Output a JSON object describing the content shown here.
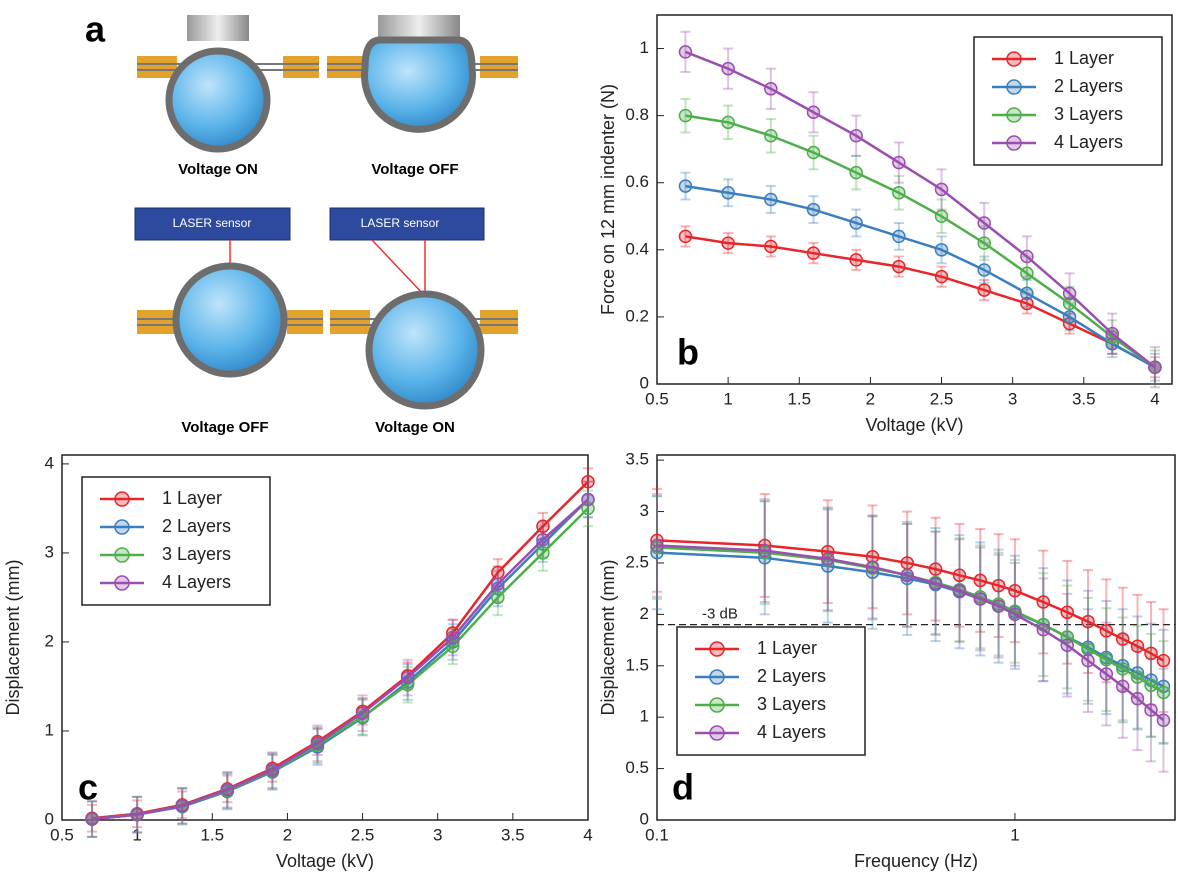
{
  "diagram": {
    "panel_label": "a",
    "top_captions": [
      "Voltage ON",
      "Voltage OFF"
    ],
    "sensor_labels": [
      "LASER sensor",
      "LASER sensor"
    ],
    "bottom_captions": [
      "Voltage OFF",
      "Voltage ON"
    ]
  },
  "chart_data": [
    {
      "type": "line",
      "panel_label": "b",
      "x_label": "Voltage (kV)",
      "y_label": "Force on 12 mm indenter (N)",
      "x": [
        0.7,
        1.0,
        1.3,
        1.6,
        1.9,
        2.2,
        2.5,
        2.8,
        3.1,
        3.4,
        3.7,
        4.0
      ],
      "series": [
        {
          "name": "1 Layer",
          "color": "#e8262a",
          "error": 0.03,
          "values": [
            0.44,
            0.42,
            0.41,
            0.39,
            0.37,
            0.35,
            0.32,
            0.28,
            0.24,
            0.18,
            0.12,
            0.05
          ]
        },
        {
          "name": "2 Layers",
          "color": "#3a7fc1",
          "error": 0.04,
          "values": [
            0.59,
            0.57,
            0.55,
            0.52,
            0.48,
            0.44,
            0.4,
            0.34,
            0.27,
            0.2,
            0.12,
            0.05
          ]
        },
        {
          "name": "3 Layers",
          "color": "#4daf4a",
          "error": 0.05,
          "values": [
            0.8,
            0.78,
            0.74,
            0.69,
            0.63,
            0.57,
            0.5,
            0.42,
            0.33,
            0.24,
            0.14,
            0.05
          ]
        },
        {
          "name": "4 Layers",
          "color": "#9a4fb0",
          "error": 0.06,
          "values": [
            0.99,
            0.94,
            0.88,
            0.81,
            0.74,
            0.66,
            0.58,
            0.48,
            0.38,
            0.27,
            0.15,
            0.05
          ]
        }
      ],
      "xlim": [
        0.5,
        4.12
      ],
      "ylim": [
        0,
        1.1
      ],
      "xticks": [
        0.5,
        1,
        1.5,
        2,
        2.5,
        3,
        3.5,
        4
      ],
      "yticks": [
        0,
        0.2,
        0.4,
        0.6,
        0.8,
        1
      ],
      "legend": "upper right"
    },
    {
      "type": "line",
      "panel_label": "c",
      "x_label": "Voltage (kV)",
      "y_label": "Displacement (mm)",
      "x": [
        0.7,
        1.0,
        1.3,
        1.6,
        1.9,
        2.2,
        2.5,
        2.8,
        3.1,
        3.4,
        3.7,
        4.0
      ],
      "series": [
        {
          "name": "1 Layer",
          "color": "#e8262a",
          "error": 0.15,
          "values": [
            0.02,
            0.07,
            0.17,
            0.35,
            0.58,
            0.88,
            1.22,
            1.62,
            2.1,
            2.78,
            3.3,
            3.8
          ]
        },
        {
          "name": "2 Layers",
          "color": "#3a7fc1",
          "error": 0.2,
          "values": [
            0.01,
            0.06,
            0.15,
            0.32,
            0.54,
            0.82,
            1.15,
            1.55,
            2.0,
            2.6,
            3.1,
            3.6
          ]
        },
        {
          "name": "3 Layers",
          "color": "#4daf4a",
          "error": 0.2,
          "values": [
            0.01,
            0.06,
            0.16,
            0.33,
            0.55,
            0.84,
            1.16,
            1.52,
            1.95,
            2.5,
            3.0,
            3.5
          ]
        },
        {
          "name": "4 Layers",
          "color": "#9a4fb0",
          "error": 0.2,
          "values": [
            0.01,
            0.06,
            0.16,
            0.34,
            0.56,
            0.86,
            1.2,
            1.6,
            2.05,
            2.65,
            3.15,
            3.6
          ]
        }
      ],
      "xlim": [
        0.5,
        4
      ],
      "ylim": [
        0,
        4.1
      ],
      "xticks": [
        0.5,
        1,
        1.5,
        2,
        2.5,
        3,
        3.5,
        4
      ],
      "yticks": [
        0,
        1,
        2,
        3,
        4
      ],
      "legend": "upper left"
    },
    {
      "type": "line",
      "panel_label": "d",
      "x_label": "Frequency (Hz)",
      "y_label": "Displacement (mm)",
      "xscale": "log",
      "x": [
        0.1,
        0.2,
        0.3,
        0.4,
        0.5,
        0.6,
        0.7,
        0.8,
        0.9,
        1.0,
        1.2,
        1.4,
        1.6,
        1.8,
        2.0,
        2.2,
        2.4,
        2.6
      ],
      "series": [
        {
          "name": "1 Layer",
          "color": "#e8262a",
          "error": 0.5,
          "values": [
            2.72,
            2.67,
            2.61,
            2.56,
            2.5,
            2.44,
            2.38,
            2.33,
            2.28,
            2.23,
            2.12,
            2.02,
            1.93,
            1.84,
            1.76,
            1.69,
            1.62,
            1.55
          ]
        },
        {
          "name": "2 Layers",
          "color": "#3a7fc1",
          "error": 0.55,
          "values": [
            2.6,
            2.55,
            2.47,
            2.41,
            2.35,
            2.29,
            2.22,
            2.15,
            2.08,
            2.02,
            1.9,
            1.78,
            1.68,
            1.58,
            1.5,
            1.43,
            1.36,
            1.3
          ]
        },
        {
          "name": "3 Layers",
          "color": "#4daf4a",
          "error": 0.5,
          "values": [
            2.65,
            2.6,
            2.53,
            2.45,
            2.38,
            2.31,
            2.24,
            2.17,
            2.1,
            2.03,
            1.9,
            1.78,
            1.66,
            1.56,
            1.47,
            1.39,
            1.31,
            1.24
          ]
        },
        {
          "name": "4 Layers",
          "color": "#9a4fb0",
          "error": 0.5,
          "values": [
            2.67,
            2.62,
            2.54,
            2.46,
            2.38,
            2.3,
            2.23,
            2.15,
            2.08,
            2.0,
            1.85,
            1.7,
            1.55,
            1.42,
            1.3,
            1.18,
            1.07,
            0.97
          ]
        }
      ],
      "reference_line": {
        "value": 1.9,
        "label": "-3 dB"
      },
      "xlim": [
        0.1,
        2.8
      ],
      "ylim": [
        0,
        3.55
      ],
      "xticks": [
        0.1,
        1
      ],
      "yticks": [
        0,
        0.5,
        1,
        1.5,
        2,
        2.5,
        3,
        3.5
      ],
      "legend": "lower left"
    }
  ]
}
